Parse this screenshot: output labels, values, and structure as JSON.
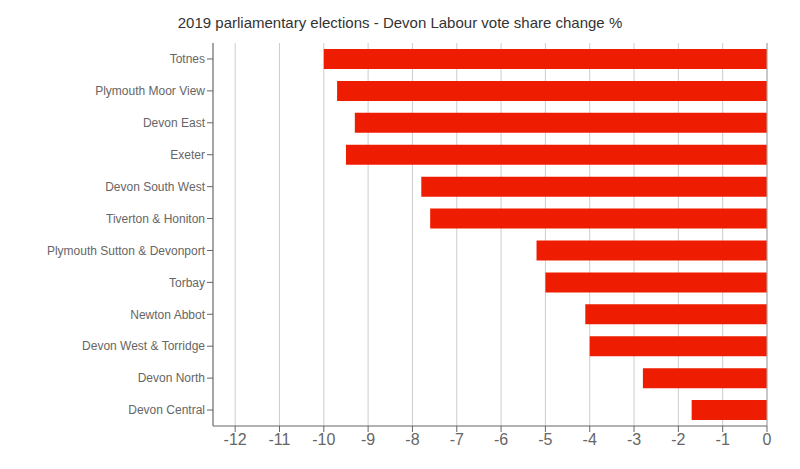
{
  "chart_data": {
    "type": "bar",
    "orientation": "horizontal",
    "title": "2019 parliamentary elections - Devon Labour vote share change %",
    "categories": [
      "Devon Central",
      "Devon North",
      "Devon West & Torridge",
      "Newton Abbot",
      "Torbay",
      "Plymouth Sutton & Devonport",
      "Tiverton & Honiton",
      "Devon South West",
      "Exeter",
      "Devon East",
      "Plymouth Moor View",
      "Totnes"
    ],
    "values": [
      -1.7,
      -2.8,
      -4.0,
      -4.1,
      -5.0,
      -5.2,
      -7.6,
      -7.8,
      -9.5,
      -9.3,
      -9.7,
      -10.0
    ],
    "color": "#ee1c00",
    "xlim": [
      -12.5,
      0.0
    ],
    "xticks": [
      -12,
      -11,
      -10,
      -9,
      -8,
      -7,
      -6,
      -5,
      -4,
      -3,
      -2,
      -1,
      0
    ],
    "grid": true
  }
}
